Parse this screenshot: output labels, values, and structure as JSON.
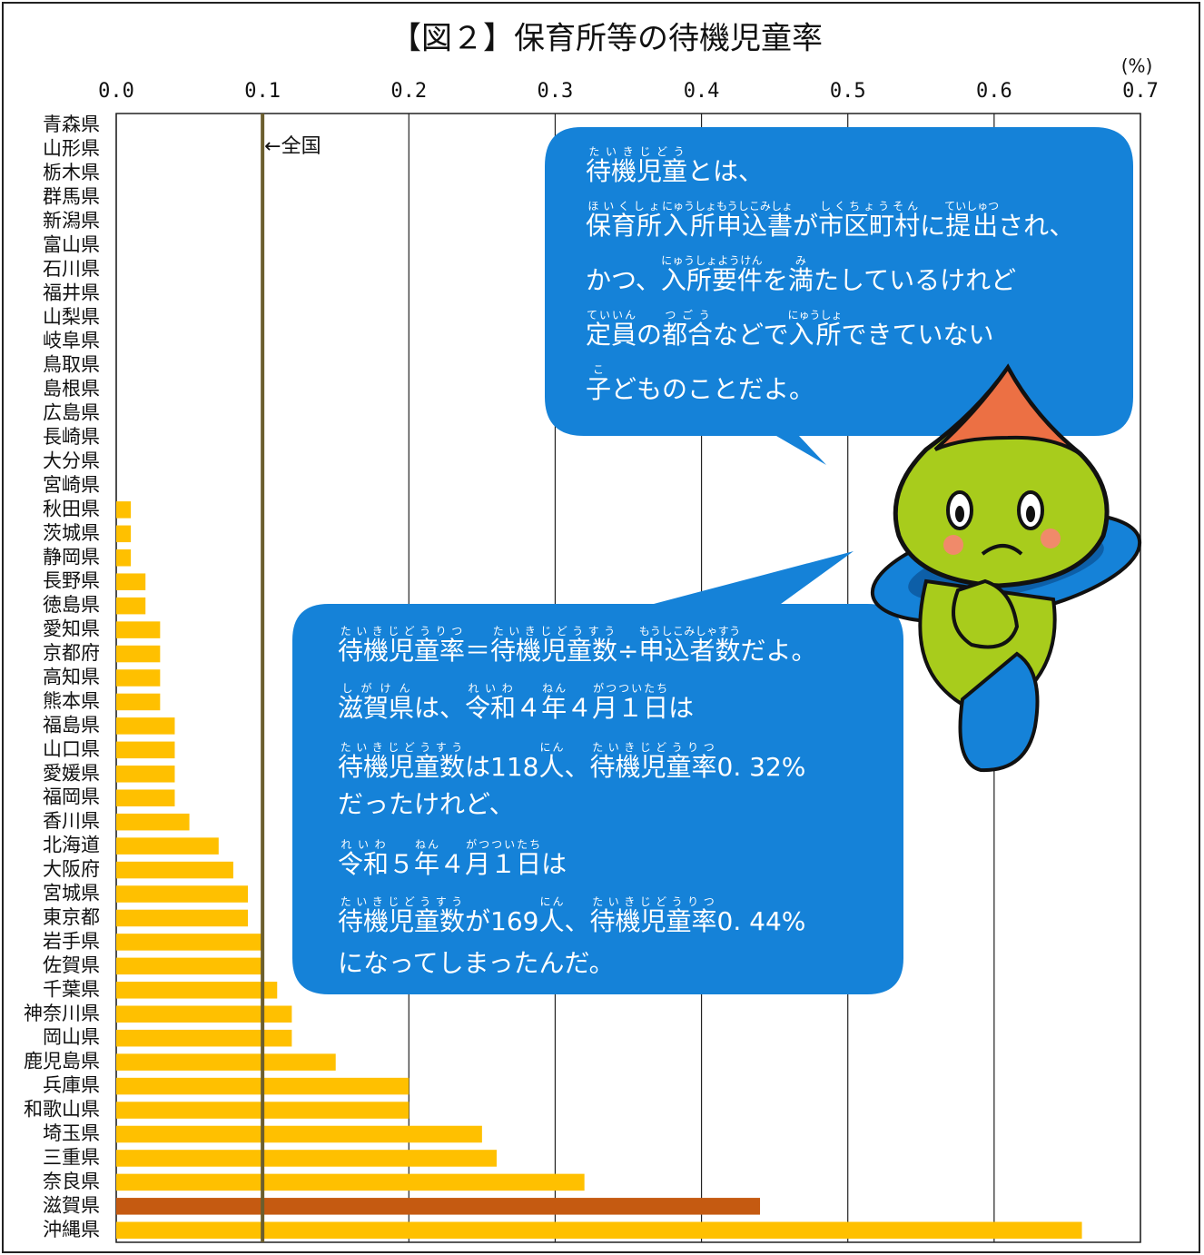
{
  "chart_data": {
    "type": "barh",
    "title": "【図２】保育所等の待機児童率",
    "unit_label": "(%)",
    "categories": [
      "青森県",
      "山形県",
      "栃木県",
      "群馬県",
      "新潟県",
      "富山県",
      "石川県",
      "福井県",
      "山梨県",
      "岐阜県",
      "鳥取県",
      "島根県",
      "広島県",
      "長崎県",
      "大分県",
      "宮崎県",
      "秋田県",
      "茨城県",
      "静岡県",
      "長野県",
      "徳島県",
      "愛知県",
      "京都府",
      "高知県",
      "熊本県",
      "福島県",
      "山口県",
      "愛媛県",
      "福岡県",
      "香川県",
      "北海道",
      "大阪府",
      "宮城県",
      "東京都",
      "岩手県",
      "佐賀県",
      "千葉県",
      "神奈川県",
      "岡山県",
      "鹿児島県",
      "兵庫県",
      "和歌山県",
      "埼玉県",
      "三重県",
      "奈良県",
      "滋賀県",
      "沖縄県"
    ],
    "values": [
      0,
      0,
      0,
      0,
      0,
      0,
      0,
      0,
      0,
      0,
      0,
      0,
      0,
      0,
      0,
      0,
      0.01,
      0.01,
      0.01,
      0.02,
      0.02,
      0.03,
      0.03,
      0.03,
      0.03,
      0.04,
      0.04,
      0.04,
      0.04,
      0.05,
      0.07,
      0.08,
      0.09,
      0.09,
      0.1,
      0.1,
      0.11,
      0.12,
      0.12,
      0.15,
      0.2,
      0.2,
      0.25,
      0.26,
      0.32,
      0.44,
      0.66
    ],
    "colors": [
      "#ffc000",
      "#ffc000",
      "#ffc000",
      "#ffc000",
      "#ffc000",
      "#ffc000",
      "#ffc000",
      "#ffc000",
      "#ffc000",
      "#ffc000",
      "#ffc000",
      "#ffc000",
      "#ffc000",
      "#ffc000",
      "#ffc000",
      "#ffc000",
      "#ffc000",
      "#ffc000",
      "#ffc000",
      "#ffc000",
      "#ffc000",
      "#ffc000",
      "#ffc000",
      "#ffc000",
      "#ffc000",
      "#ffc000",
      "#ffc000",
      "#ffc000",
      "#ffc000",
      "#ffc000",
      "#ffc000",
      "#ffc000",
      "#ffc000",
      "#ffc000",
      "#ffc000",
      "#ffc000",
      "#ffc000",
      "#ffc000",
      "#ffc000",
      "#ffc000",
      "#ffc000",
      "#ffc000",
      "#ffc000",
      "#ffc000",
      "#ffc000",
      "#c55a11",
      "#ffc000"
    ],
    "xlim": [
      0,
      0.7
    ],
    "xticks": [
      {
        "value": 0,
        "label": "0.0"
      },
      0.1,
      0.2,
      0.3,
      0.4,
      0.5,
      0.6,
      0.7
    ],
    "grid": true,
    "reference": {
      "value": 0.1,
      "label": "←全国",
      "color": "#6b5e2e"
    }
  },
  "bubbles": [
    {
      "lines": [
        [
          {
            "t": "待機児童",
            "r": "たいきじどう"
          },
          "とは、"
        ],
        [
          {
            "t": "保育所",
            "r": "ほいくしょ"
          },
          {
            "t": "入所",
            "r": "にゅうしょ"
          },
          {
            "t": "申込書",
            "r": "もうしこみしょ"
          },
          "が",
          {
            "t": "市区町村",
            "r": "しくちょうそん"
          },
          "に",
          {
            "t": "提出",
            "r": "ていしゅつ"
          },
          "され、"
        ],
        [
          "かつ、",
          {
            "t": "入所要件",
            "r": "にゅうしょようけん"
          },
          "を",
          {
            "t": "満",
            "r": "み"
          },
          "たしているけれど"
        ],
        [
          {
            "t": "定員",
            "r": "ていいん"
          },
          "の",
          {
            "t": "都合",
            "r": "つごう"
          },
          "などで",
          {
            "t": "入所",
            "r": "にゅうしょ"
          },
          "できていない"
        ],
        [
          {
            "t": "子",
            "r": "こ"
          },
          "どものことだよ。"
        ]
      ]
    },
    {
      "lines": [
        [
          {
            "t": "待機児童率",
            "r": "たいきじどうりつ"
          },
          "＝",
          {
            "t": "待機児童数",
            "r": "たいきじどうすう"
          },
          "÷",
          {
            "t": "申込者数",
            "r": "もうしこみしゃすう"
          },
          "だよ。"
        ],
        [
          {
            "t": "滋賀県",
            "r": "しがけん"
          },
          "は、",
          {
            "t": "令和",
            "r": "れいわ"
          },
          "４",
          {
            "t": "年",
            "r": "ねん"
          },
          "４",
          {
            "t": "月１日",
            "r": "がつついたち"
          },
          "は"
        ],
        [
          {
            "t": "待機児童数",
            "r": "たいきじどうすう"
          },
          "は118",
          {
            "t": "人",
            "r": "にん"
          },
          "、",
          {
            "t": "待機児童率",
            "r": "たいきじどうりつ"
          },
          "0. 32%"
        ],
        [
          "だったけれど、"
        ],
        [
          {
            "t": "令和",
            "r": "れいわ"
          },
          "５",
          {
            "t": "年",
            "r": "ねん"
          },
          "４",
          {
            "t": "月１日",
            "r": "がつついたち"
          },
          "は"
        ],
        [
          {
            "t": "待機児童数",
            "r": "たいきじどうすう"
          },
          "が169",
          {
            "t": "人",
            "r": "にん"
          },
          "、",
          {
            "t": "待機児童率",
            "r": "たいきじどうりつ"
          },
          "0. 44%"
        ],
        [
          "になってしまったんだ。"
        ]
      ]
    }
  ]
}
